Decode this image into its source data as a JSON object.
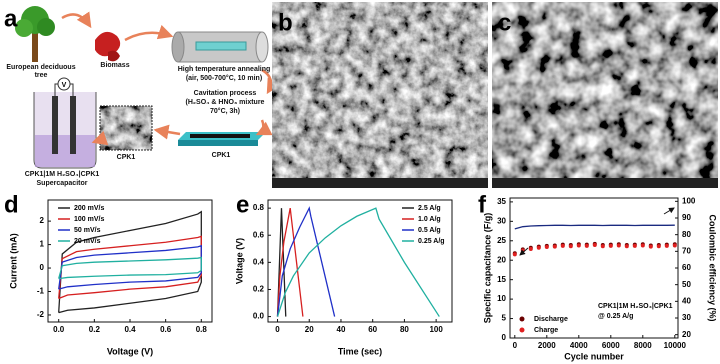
{
  "panel_labels": [
    "a",
    "b",
    "c",
    "d",
    "e",
    "f"
  ],
  "schematic": {
    "tree": "European deciduous tree",
    "biomass": "Biomass",
    "annealing_title": "High temperature annealing",
    "annealing_detail": "(air, 500-700°C, 10 min)",
    "cavitation_title": "Cavitation process",
    "cavitation_detail": "(H₂SO₄ & HNO₃ mixture",
    "cavitation_detail2": "70°C, 3h)",
    "product": "CPK1",
    "sem_label": "CPK1",
    "device": "CPK1|1M H₂SO₄|CPK1",
    "device_type": "Supercapacitor",
    "meter": "V"
  },
  "chart_data": [
    {
      "type": "line",
      "xlabel": "Voltage (V)",
      "ylabel": "Current (mA)",
      "xlim": [
        -0.06,
        0.86
      ],
      "ylim": [
        -2.3,
        2.9
      ],
      "xticks": [
        {
          "value": 0,
          "label": "0.0"
        },
        0.2,
        0.4,
        0.6,
        0.8
      ],
      "yticks": [
        -2,
        -1,
        0,
        1,
        2
      ],
      "legend": "upper left",
      "series": [
        {
          "name": "200 mV/s",
          "color": "#222222",
          "x": [
            0,
            0.02,
            0.1,
            0.2,
            0.4,
            0.6,
            0.78,
            0.8,
            0.8,
            0.78,
            0.6,
            0.4,
            0.2,
            0.05,
            0
          ],
          "values": [
            -1.9,
            0.6,
            1.1,
            1.3,
            1.6,
            1.9,
            2.3,
            2.4,
            -0.6,
            -1.0,
            -1.3,
            -1.5,
            -1.7,
            -1.8,
            -1.9
          ]
        },
        {
          "name": "100 mV/s",
          "color": "#d62020",
          "x": [
            0,
            0.02,
            0.1,
            0.2,
            0.4,
            0.6,
            0.78,
            0.8,
            0.8,
            0.78,
            0.6,
            0.4,
            0.2,
            0.05,
            0
          ],
          "values": [
            -1.3,
            0.4,
            0.7,
            0.8,
            0.95,
            1.1,
            1.3,
            1.35,
            -0.3,
            -0.6,
            -0.8,
            -0.9,
            -1.05,
            -1.15,
            -1.3
          ]
        },
        {
          "name": "50 mV/s",
          "color": "#2030c8",
          "x": [
            0,
            0.02,
            0.1,
            0.2,
            0.4,
            0.6,
            0.78,
            0.8,
            0.8,
            0.78,
            0.6,
            0.4,
            0.2,
            0.05,
            0
          ],
          "values": [
            -0.9,
            0.25,
            0.45,
            0.55,
            0.65,
            0.75,
            0.9,
            0.95,
            -0.2,
            -0.4,
            -0.55,
            -0.6,
            -0.7,
            -0.8,
            -0.9
          ]
        },
        {
          "name": "20 mV/s",
          "color": "#20b0a0",
          "x": [
            0,
            0.02,
            0.1,
            0.2,
            0.4,
            0.6,
            0.78,
            0.8,
            0.8,
            0.78,
            0.6,
            0.4,
            0.2,
            0.05,
            0
          ],
          "values": [
            -0.45,
            0.1,
            0.2,
            0.25,
            0.3,
            0.35,
            0.42,
            0.45,
            -0.1,
            -0.2,
            -0.28,
            -0.3,
            -0.35,
            -0.4,
            -0.45
          ]
        }
      ]
    },
    {
      "type": "line",
      "xlabel": "Time (sec)",
      "ylabel": "Voltage (V)",
      "xlim": [
        -6,
        110
      ],
      "ylim": [
        -0.04,
        0.86
      ],
      "xticks": [
        0,
        20,
        40,
        60,
        80,
        100
      ],
      "yticks": [
        {
          "value": 0,
          "label": "0.0"
        },
        0.2,
        0.4,
        0.6,
        0.8
      ],
      "legend": "upper right",
      "series": [
        {
          "name": "2.5 A/g",
          "color": "#222222",
          "x": [
            0,
            2.5,
            5.2
          ],
          "values": [
            0,
            0.8,
            0
          ]
        },
        {
          "name": "1.0 A/g",
          "color": "#d62020",
          "x": [
            0,
            1.5,
            4,
            8,
            8.6,
            16
          ],
          "values": [
            0,
            0.3,
            0.55,
            0.8,
            0.74,
            0
          ]
        },
        {
          "name": "0.5 A/g",
          "color": "#2030c8",
          "x": [
            0,
            3,
            8,
            14,
            20,
            21,
            36
          ],
          "values": [
            0,
            0.3,
            0.5,
            0.66,
            0.8,
            0.74,
            0
          ]
        },
        {
          "name": "0.25 A/g",
          "color": "#20b0a0",
          "x": [
            0,
            5,
            10,
            20,
            30,
            40,
            50,
            62,
            64,
            80,
            102
          ],
          "values": [
            0,
            0.18,
            0.3,
            0.47,
            0.58,
            0.67,
            0.74,
            0.8,
            0.72,
            0.4,
            0
          ]
        }
      ]
    },
    {
      "type": "scatter",
      "xlabel": "Cycle number",
      "ylabel": "Specific capacitance (F/g)",
      "y2label": "Coulombic efficiency (%)",
      "xlim": [
        -300,
        10200
      ],
      "ylim": [
        0,
        36
      ],
      "y2lim": [
        18,
        102
      ],
      "xticks": [
        0,
        2000,
        4000,
        6000,
        8000,
        10000
      ],
      "yticks": [
        0,
        5,
        10,
        15,
        20,
        25,
        30,
        35
      ],
      "y2ticks": [
        20,
        30,
        40,
        50,
        60,
        70,
        80,
        90,
        100
      ],
      "legend": "lower left",
      "annotations": [
        "CPK1|1M H₂SO₄|CPK1",
        "@ 0.25 A/g"
      ],
      "series": [
        {
          "name": "Discharge",
          "color": "#6b0000",
          "style": "markers",
          "x": [
            0,
            500,
            1000,
            1500,
            2000,
            2500,
            3000,
            3500,
            4000,
            4500,
            5000,
            5500,
            6000,
            6500,
            7000,
            7500,
            8000,
            8500,
            9000,
            9500,
            10000
          ],
          "values": [
            21.8,
            22.8,
            23.2,
            23.5,
            23.7,
            23.8,
            24.0,
            23.9,
            24.1,
            24.0,
            24.2,
            23.9,
            24.0,
            24.1,
            23.9,
            24.0,
            24.1,
            23.8,
            23.9,
            24.0,
            24.1
          ]
        },
        {
          "name": "Charge",
          "color": "#e02020",
          "style": "markers",
          "x": [
            0,
            500,
            1000,
            1500,
            2000,
            2500,
            3000,
            3500,
            4000,
            4500,
            5000,
            5500,
            6000,
            6500,
            7000,
            7500,
            8000,
            8500,
            9000,
            9500,
            10000
          ],
          "values": [
            21.5,
            22.5,
            22.9,
            23.2,
            23.4,
            23.5,
            23.7,
            23.6,
            23.8,
            23.7,
            23.9,
            23.6,
            23.7,
            23.8,
            23.6,
            23.7,
            23.8,
            23.5,
            23.6,
            23.7,
            23.8
          ]
        },
        {
          "color": "#1a2a80",
          "style": "line",
          "axis": "y2",
          "x": [
            0,
            500,
            1000,
            1500,
            2000,
            2500,
            3000,
            3500,
            4000,
            4500,
            5000,
            5500,
            6000,
            6500,
            7000,
            7500,
            8000,
            8500,
            9000,
            9500,
            10000
          ],
          "values": [
            83.5,
            84.8,
            85.2,
            85.4,
            85.5,
            85.6,
            85.6,
            85.5,
            85.6,
            85.6,
            85.6,
            85.5,
            85.6,
            85.6,
            85.6,
            85.5,
            85.6,
            85.6,
            85.6,
            85.6,
            85.7
          ]
        }
      ]
    }
  ]
}
